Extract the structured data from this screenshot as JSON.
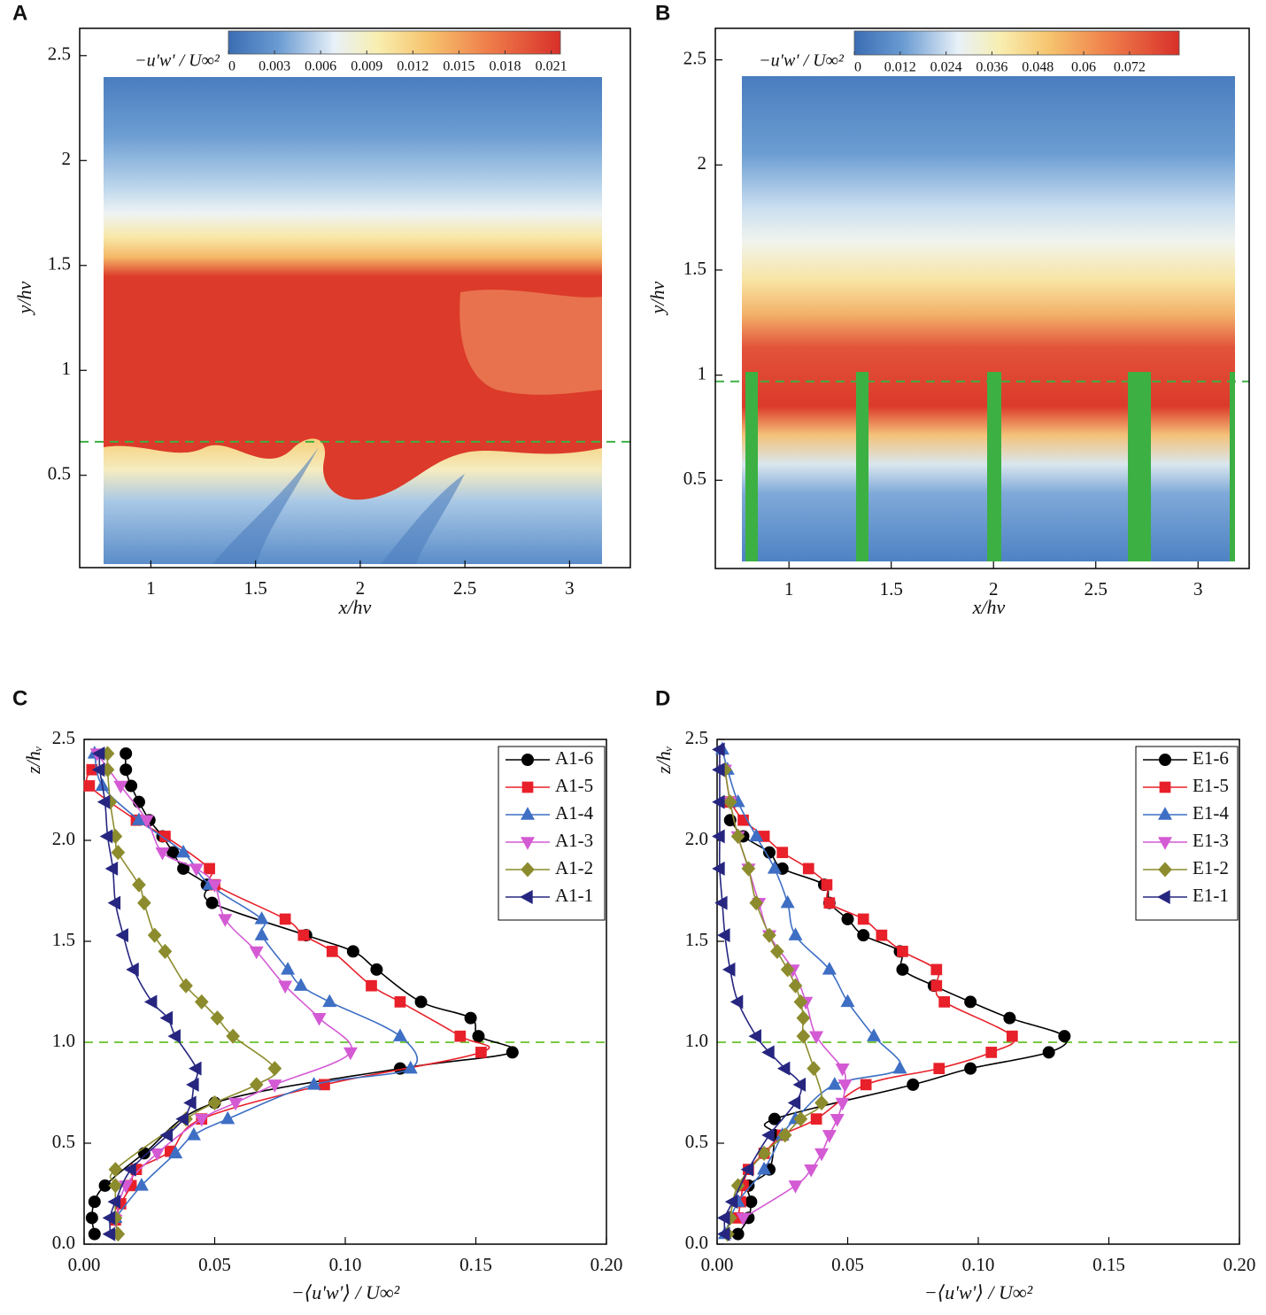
{
  "chart_data": [
    {
      "type": "contour",
      "label": "A",
      "xlabel": "x/hv",
      "ylabel": "y/hv",
      "xlim": [
        0.66,
        3.29
      ],
      "ylim": [
        0.06,
        2.63
      ],
      "xticks": [
        1,
        1.5,
        2,
        2.5,
        3
      ],
      "yticks": [
        0.5,
        1,
        1.5,
        2,
        2.5
      ],
      "hline": 0.66,
      "hline_color": "#3cb043",
      "colorbar": {
        "label": "−u'w' / U∞²",
        "clim": [
          0,
          0.0216
        ],
        "ticks": [
          0,
          0.003,
          0.006,
          0.009,
          0.012,
          0.015,
          0.018,
          0.021
        ]
      }
    },
    {
      "type": "contour",
      "label": "B",
      "xlabel": "x/hv",
      "ylabel": "y/hv",
      "xlim": [
        0.64,
        3.25
      ],
      "ylim": [
        0.08,
        2.65
      ],
      "xticks": [
        1,
        1.5,
        2,
        2.5,
        3
      ],
      "yticks": [
        0.5,
        1,
        1.5,
        2,
        2.5
      ],
      "hline": 0.97,
      "hline_color": "#3cb043",
      "colorbar": {
        "label": "−u'w' / U∞²",
        "clim": [
          0,
          0.085
        ],
        "ticks": [
          0,
          0.012,
          0.024,
          0.036,
          0.048,
          0.06,
          0.072
        ]
      }
    },
    {
      "type": "profile",
      "label": "C",
      "xlabel": "−⟨u'w'⟩ / U∞²",
      "ylabel": "z/hᵥ",
      "xlim": [
        0,
        0.2
      ],
      "ylim": [
        0,
        2.5
      ],
      "xticks": [
        {
          "value": 0,
          "label": "0.00"
        },
        {
          "value": 0.05,
          "label": "0.05"
        },
        {
          "value": 0.1,
          "label": "0.10"
        },
        {
          "value": 0.15,
          "label": "0.15"
        },
        {
          "value": 0.2,
          "label": "0.20"
        }
      ],
      "yticks": [
        {
          "value": 0,
          "label": "0.0"
        },
        {
          "value": 0.5,
          "label": "0.5"
        },
        {
          "value": 1,
          "label": "1.0"
        },
        {
          "value": 1.5,
          "label": "1.5"
        },
        {
          "value": 2,
          "label": "2.0"
        },
        {
          "value": 2.5,
          "label": "2.5"
        }
      ],
      "hline": 1.0,
      "hline_color": "#7ac943",
      "legend": "upper right",
      "series": [
        {
          "name": "A1-6",
          "color": "#000000",
          "marker": "circle",
          "y": [
            0.05,
            0.13,
            0.21,
            0.29,
            0.45,
            0.7,
            0.87,
            0.95,
            1.03,
            1.12,
            1.2,
            1.36,
            1.45,
            1.53,
            1.69,
            1.78,
            1.86,
            1.94,
            2.02,
            2.1,
            2.19,
            2.27,
            2.35,
            2.43
          ],
          "x": [
            0.004,
            0.003,
            0.004,
            0.008,
            0.023,
            0.05,
            0.121,
            0.164,
            0.151,
            0.148,
            0.129,
            0.112,
            0.103,
            0.085,
            0.049,
            0.047,
            0.038,
            0.034,
            0.03,
            0.025,
            0.021,
            0.018,
            0.016,
            0.016
          ]
        },
        {
          "name": "A1-5",
          "color": "#e8202a",
          "marker": "square",
          "y": [
            0.12,
            0.2,
            0.29,
            0.37,
            0.46,
            0.62,
            0.79,
            0.95,
            1.03,
            1.2,
            1.28,
            1.45,
            1.53,
            1.61,
            1.78,
            1.86,
            2.02,
            2.1,
            2.27,
            2.35
          ],
          "x": [
            0.012,
            0.014,
            0.018,
            0.02,
            0.033,
            0.045,
            0.092,
            0.152,
            0.144,
            0.121,
            0.11,
            0.095,
            0.084,
            0.077,
            0.05,
            0.048,
            0.031,
            0.02,
            0.002,
            0.003
          ]
        },
        {
          "name": "A1-4",
          "color": "#3e6fc4",
          "marker": "triangle-up",
          "y": [
            0.13,
            0.29,
            0.45,
            0.54,
            0.62,
            0.79,
            0.87,
            1.03,
            1.2,
            1.28,
            1.36,
            1.53,
            1.61,
            1.78,
            1.94,
            2.1,
            2.27,
            2.43
          ],
          "x": [
            0.012,
            0.022,
            0.035,
            0.042,
            0.055,
            0.088,
            0.125,
            0.121,
            0.094,
            0.083,
            0.078,
            0.068,
            0.068,
            0.048,
            0.038,
            0.021,
            0.007,
            0.004
          ]
        },
        {
          "name": "A1-3",
          "color": "#d45ad4",
          "marker": "triangle-down",
          "y": [
            0.12,
            0.29,
            0.45,
            0.62,
            0.7,
            0.79,
            0.95,
            1.12,
            1.28,
            1.45,
            1.61,
            1.78,
            1.86,
            1.94,
            2.1,
            2.27,
            2.43
          ],
          "x": [
            0.012,
            0.016,
            0.028,
            0.045,
            0.058,
            0.073,
            0.102,
            0.09,
            0.077,
            0.066,
            0.054,
            0.05,
            0.043,
            0.03,
            0.024,
            0.014,
            0.005
          ]
        },
        {
          "name": "A1-2",
          "color": "#8c8c2e",
          "marker": "diamond",
          "y": [
            0.05,
            0.13,
            0.29,
            0.37,
            0.62,
            0.7,
            0.79,
            0.87,
            1.03,
            1.12,
            1.2,
            1.28,
            1.45,
            1.53,
            1.69,
            1.78,
            1.94,
            2.02,
            2.19,
            2.35,
            2.43
          ],
          "x": [
            0.013,
            0.012,
            0.012,
            0.012,
            0.039,
            0.05,
            0.066,
            0.073,
            0.057,
            0.051,
            0.045,
            0.039,
            0.031,
            0.027,
            0.023,
            0.021,
            0.013,
            0.012,
            0.01,
            0.009,
            0.009
          ]
        },
        {
          "name": "A1-1",
          "color": "#262680",
          "marker": "triangle-left",
          "y": [
            0.05,
            0.13,
            0.21,
            0.37,
            0.54,
            0.62,
            0.7,
            0.79,
            0.87,
            1.03,
            1.12,
            1.2,
            1.36,
            1.53,
            1.69,
            1.86,
            2.02,
            2.19,
            2.35,
            2.43
          ],
          "x": [
            0.01,
            0.01,
            0.012,
            0.018,
            0.032,
            0.038,
            0.041,
            0.042,
            0.043,
            0.035,
            0.032,
            0.026,
            0.019,
            0.015,
            0.012,
            0.011,
            0.009,
            0.008,
            0.006,
            0.006
          ]
        }
      ]
    },
    {
      "type": "profile",
      "label": "D",
      "xlabel": "−⟨u'w'⟩ / U∞²",
      "ylabel": "z/hᵥ",
      "xlim": [
        0,
        0.2
      ],
      "ylim": [
        0,
        2.5
      ],
      "xticks": [
        {
          "value": 0,
          "label": "0.00"
        },
        {
          "value": 0.05,
          "label": "0.05"
        },
        {
          "value": 0.1,
          "label": "0.10"
        },
        {
          "value": 0.15,
          "label": "0.15"
        },
        {
          "value": 0.2,
          "label": "0.20"
        }
      ],
      "yticks": [
        {
          "value": 0,
          "label": "0.0"
        },
        {
          "value": 0.5,
          "label": "0.5"
        },
        {
          "value": 1,
          "label": "1.0"
        },
        {
          "value": 1.5,
          "label": "1.5"
        },
        {
          "value": 2,
          "label": "2.0"
        },
        {
          "value": 2.5,
          "label": "2.5"
        }
      ],
      "hline": 1.0,
      "hline_color": "#7ac943",
      "legend": "upper right",
      "series": [
        {
          "name": "E1-6",
          "color": "#000000",
          "marker": "circle",
          "y": [
            0.05,
            0.13,
            0.21,
            0.29,
            0.37,
            0.54,
            0.62,
            0.79,
            0.87,
            0.95,
            1.03,
            1.12,
            1.2,
            1.28,
            1.36,
            1.45,
            1.53,
            1.61,
            1.69,
            1.78,
            1.86,
            1.94,
            2.02,
            2.1
          ],
          "x": [
            0.008,
            0.012,
            0.013,
            0.012,
            0.02,
            0.022,
            0.022,
            0.075,
            0.097,
            0.127,
            0.133,
            0.112,
            0.097,
            0.083,
            0.071,
            0.07,
            0.056,
            0.05,
            0.043,
            0.041,
            0.025,
            0.02,
            0.01,
            0.005
          ]
        },
        {
          "name": "E1-5",
          "color": "#e8202a",
          "marker": "square",
          "y": [
            0.13,
            0.21,
            0.29,
            0.37,
            0.45,
            0.54,
            0.62,
            0.79,
            0.87,
            0.95,
            1.03,
            1.2,
            1.28,
            1.36,
            1.45,
            1.53,
            1.61,
            1.69,
            1.78,
            1.86,
            1.94,
            2.02,
            2.1,
            2.19
          ],
          "x": [
            0.008,
            0.009,
            0.01,
            0.012,
            0.018,
            0.025,
            0.038,
            0.057,
            0.085,
            0.105,
            0.113,
            0.087,
            0.084,
            0.084,
            0.071,
            0.063,
            0.056,
            0.043,
            0.042,
            0.035,
            0.025,
            0.018,
            0.01,
            0.005
          ]
        },
        {
          "name": "E1-4",
          "color": "#3e6fc4",
          "marker": "triangle-up",
          "y": [
            0.05,
            0.21,
            0.37,
            0.54,
            0.62,
            0.79,
            0.87,
            1.03,
            1.2,
            1.36,
            1.53,
            1.69,
            1.86,
            2.02,
            2.19,
            2.35,
            2.45
          ],
          "x": [
            0.003,
            0.008,
            0.018,
            0.025,
            0.03,
            0.045,
            0.07,
            0.06,
            0.05,
            0.043,
            0.03,
            0.027,
            0.022,
            0.015,
            0.008,
            0.004,
            0.002
          ]
        },
        {
          "name": "E1-3",
          "color": "#d45ad4",
          "marker": "triangle-down",
          "y": [
            0.13,
            0.29,
            0.37,
            0.45,
            0.54,
            0.62,
            0.7,
            0.79,
            0.87,
            1.03,
            1.2,
            1.36,
            1.53,
            1.69,
            1.86,
            2.02,
            2.19,
            2.35
          ],
          "x": [
            0.01,
            0.03,
            0.036,
            0.04,
            0.043,
            0.046,
            0.048,
            0.049,
            0.048,
            0.038,
            0.034,
            0.029,
            0.02,
            0.016,
            0.012,
            0.008,
            0.005,
            0.003
          ]
        },
        {
          "name": "E1-2",
          "color": "#8c8c2e",
          "marker": "diamond",
          "y": [
            0.05,
            0.13,
            0.29,
            0.45,
            0.54,
            0.62,
            0.7,
            0.87,
            1.03,
            1.12,
            1.2,
            1.28,
            1.36,
            1.45,
            1.53,
            1.69,
            1.86,
            2.02,
            2.19,
            2.35
          ],
          "x": [
            0.004,
            0.005,
            0.008,
            0.018,
            0.026,
            0.032,
            0.04,
            0.037,
            0.033,
            0.033,
            0.032,
            0.03,
            0.027,
            0.023,
            0.02,
            0.015,
            0.012,
            0.008,
            0.005,
            0.003
          ]
        },
        {
          "name": "E1-1",
          "color": "#262680",
          "marker": "triangle-left",
          "y": [
            0.05,
            0.13,
            0.21,
            0.37,
            0.54,
            0.7,
            0.79,
            0.87,
            0.95,
            1.03,
            1.2,
            1.36,
            1.53,
            1.69,
            1.86,
            2.02,
            2.19,
            2.35,
            2.45
          ],
          "x": [
            0.003,
            0.003,
            0.006,
            0.012,
            0.02,
            0.03,
            0.032,
            0.026,
            0.02,
            0.015,
            0.008,
            0.005,
            0.003,
            0.002,
            0.001,
            0.001,
            0.001,
            0.001,
            0.001
          ]
        }
      ]
    }
  ]
}
